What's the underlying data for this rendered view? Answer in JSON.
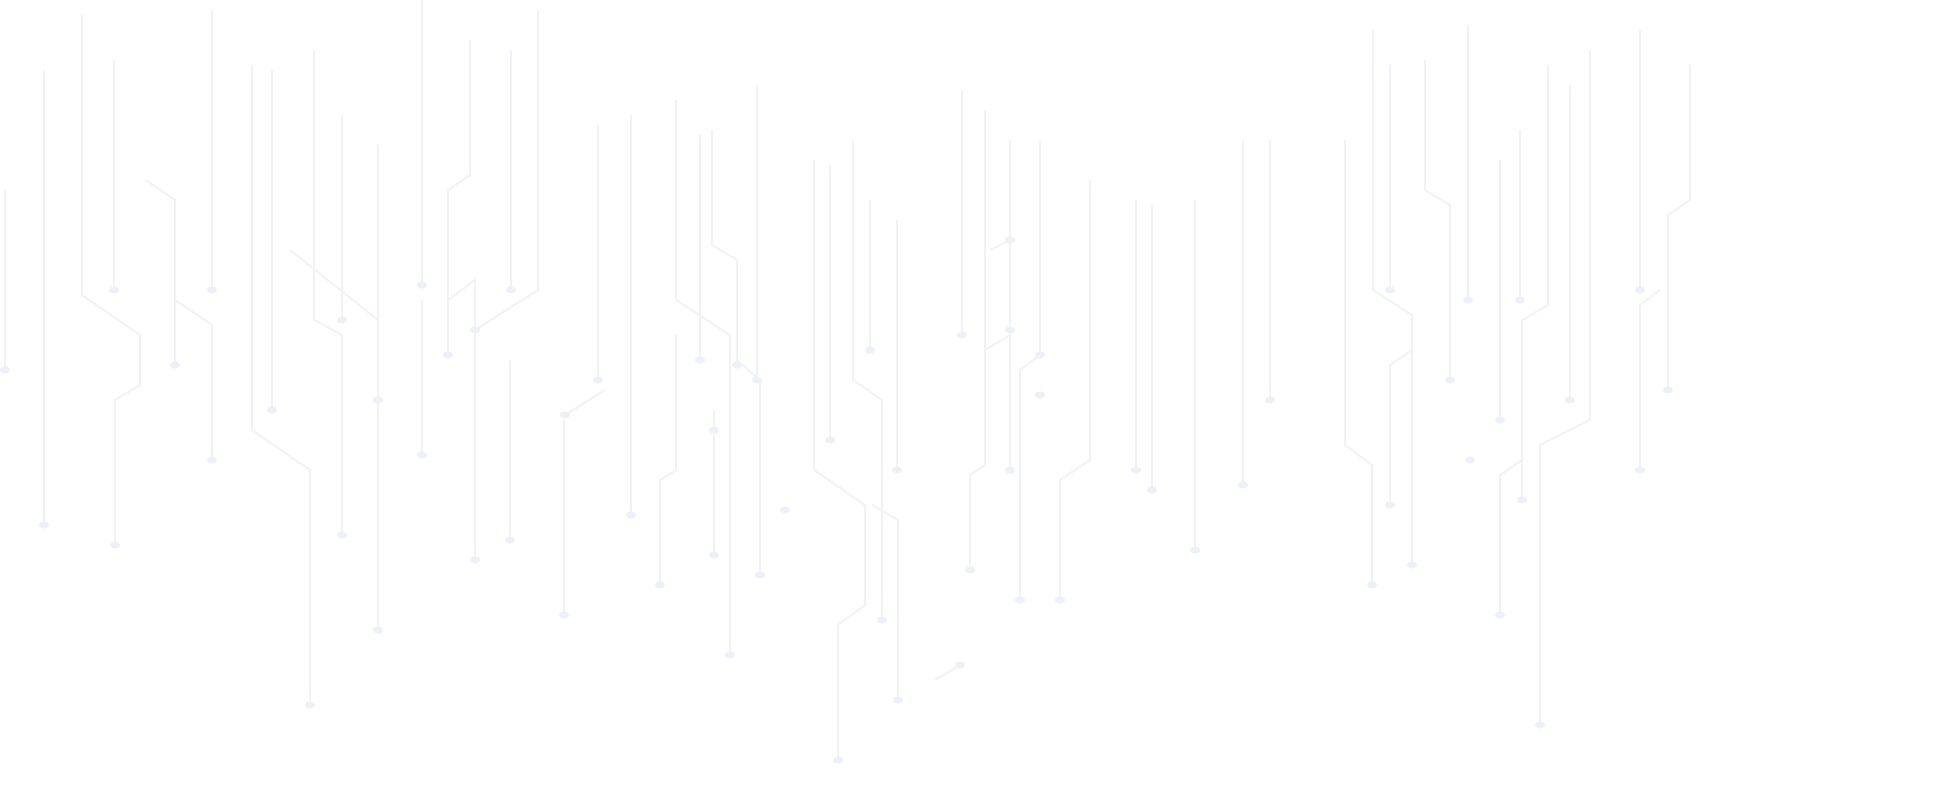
{
  "background": {
    "pattern": "circuit-lines",
    "colors": {
      "background": "#ffffff",
      "line": "#f1f2f8",
      "node": "#eef0f8"
    }
  }
}
